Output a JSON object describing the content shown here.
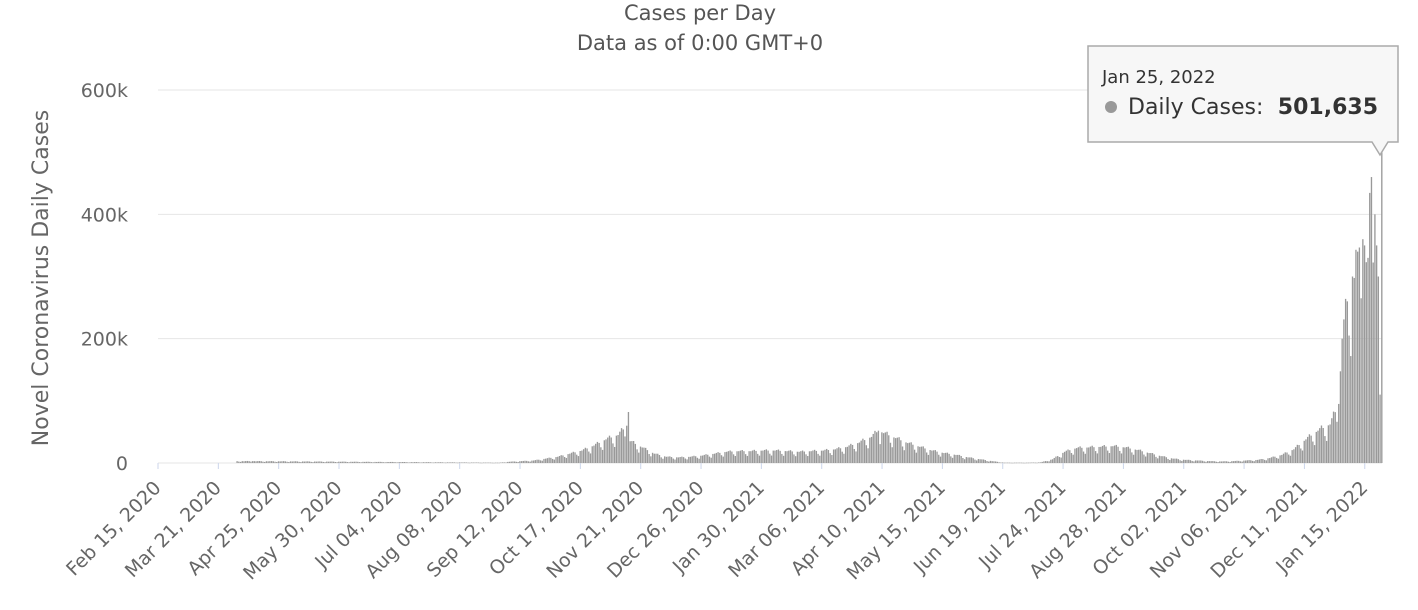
{
  "chart_data": {
    "type": "bar",
    "title": "Cases per Day",
    "subtitle": "Data as of 0:00 GMT+0",
    "ylabel": "Novel Coronavirus Daily Cases",
    "xlabel": "",
    "ylim": [
      0,
      600000
    ],
    "y_ticks": [
      {
        "value": 0,
        "label": "0"
      },
      {
        "value": 200000,
        "label": "200k"
      },
      {
        "value": 400000,
        "label": "400k"
      },
      {
        "value": 600000,
        "label": "600k"
      }
    ],
    "x_start_date": "2020-02-15",
    "x_end_date": "2022-01-25",
    "x_tick_labels": [
      "Feb 15, 2020",
      "Mar 21, 2020",
      "Apr 25, 2020",
      "May 30, 2020",
      "Jul 04, 2020",
      "Aug 08, 2020",
      "Sep 12, 2020",
      "Oct 17, 2020",
      "Nov 21, 2020",
      "Dec 26, 2020",
      "Jan 30, 2021",
      "Mar 06, 2021",
      "Apr 10, 2021",
      "May 15, 2021",
      "Jun 19, 2021",
      "Jul 24, 2021",
      "Aug 28, 2021",
      "Oct 02, 2021",
      "Nov 06, 2021",
      "Dec 11, 2021",
      "Jan 15, 2022"
    ],
    "grid": true,
    "series": [
      {
        "name": "Daily Cases",
        "color": "#999999",
        "points": [
          [
            "2020-04-01",
            3000
          ],
          [
            "2020-04-10",
            3000
          ],
          [
            "2020-08-31",
            500
          ],
          [
            "2020-09-06",
            2000
          ],
          [
            "2020-09-13",
            3000
          ],
          [
            "2020-09-20",
            4000
          ],
          [
            "2020-09-27",
            7000
          ],
          [
            "2020-10-04",
            10000
          ],
          [
            "2020-10-11",
            15000
          ],
          [
            "2020-10-18",
            20000
          ],
          [
            "2020-10-25",
            28000
          ],
          [
            "2020-11-01",
            38000
          ],
          [
            "2020-11-08",
            45000
          ],
          [
            "2020-11-13",
            60000
          ],
          [
            "2020-11-14",
            82000
          ],
          [
            "2020-11-15",
            35000
          ],
          [
            "2020-11-22",
            25000
          ],
          [
            "2020-11-29",
            15000
          ],
          [
            "2020-12-06",
            10000
          ],
          [
            "2020-12-13",
            9000
          ],
          [
            "2020-12-20",
            10000
          ],
          [
            "2020-12-27",
            12000
          ],
          [
            "2021-01-03",
            15000
          ],
          [
            "2021-01-10",
            18000
          ],
          [
            "2021-01-17",
            19000
          ],
          [
            "2021-01-24",
            19000
          ],
          [
            "2021-01-31",
            20000
          ],
          [
            "2021-02-07",
            20000
          ],
          [
            "2021-02-14",
            19000
          ],
          [
            "2021-02-21",
            18000
          ],
          [
            "2021-02-28",
            19000
          ],
          [
            "2021-03-07",
            20000
          ],
          [
            "2021-03-14",
            22000
          ],
          [
            "2021-03-21",
            26000
          ],
          [
            "2021-03-28",
            33000
          ],
          [
            "2021-04-04",
            42000
          ],
          [
            "2021-04-08",
            52000
          ],
          [
            "2021-04-11",
            48000
          ],
          [
            "2021-04-18",
            40000
          ],
          [
            "2021-04-25",
            32000
          ],
          [
            "2021-05-02",
            26000
          ],
          [
            "2021-05-09",
            20000
          ],
          [
            "2021-05-16",
            16000
          ],
          [
            "2021-05-23",
            13000
          ],
          [
            "2021-05-30",
            9000
          ],
          [
            "2021-06-06",
            6000
          ],
          [
            "2021-06-13",
            3000
          ],
          [
            "2021-06-20",
            500
          ],
          [
            "2021-06-27",
            500
          ],
          [
            "2021-07-04",
            500
          ],
          [
            "2021-07-11",
            1000
          ],
          [
            "2021-07-18",
            6000
          ],
          [
            "2021-07-25",
            18000
          ],
          [
            "2021-08-01",
            24000
          ],
          [
            "2021-08-08",
            25000
          ],
          [
            "2021-08-15",
            26000
          ],
          [
            "2021-08-22",
            27000
          ],
          [
            "2021-08-29",
            25000
          ],
          [
            "2021-09-05",
            21000
          ],
          [
            "2021-09-12",
            16000
          ],
          [
            "2021-09-19",
            11000
          ],
          [
            "2021-09-26",
            7000
          ],
          [
            "2021-10-03",
            5000
          ],
          [
            "2021-10-10",
            4000
          ],
          [
            "2021-10-17",
            3000
          ],
          [
            "2021-10-24",
            2500
          ],
          [
            "2021-10-31",
            3000
          ],
          [
            "2021-11-07",
            4000
          ],
          [
            "2021-11-14",
            5000
          ],
          [
            "2021-11-21",
            8000
          ],
          [
            "2021-11-28",
            13000
          ],
          [
            "2021-12-05",
            22000
          ],
          [
            "2021-12-12",
            38000
          ],
          [
            "2021-12-19",
            52000
          ],
          [
            "2021-12-26",
            62000
          ],
          [
            "2021-12-31",
            95000
          ],
          [
            "2022-01-02",
            200000
          ],
          [
            "2022-01-05",
            260000
          ],
          [
            "2022-01-08",
            300000
          ],
          [
            "2022-01-11",
            340000
          ],
          [
            "2022-01-14",
            360000
          ],
          [
            "2022-01-17",
            330000
          ],
          [
            "2022-01-19",
            460000
          ],
          [
            "2022-01-21",
            400000
          ],
          [
            "2022-01-23",
            300000
          ],
          [
            "2022-01-24",
            110000
          ],
          [
            "2022-01-25",
            501635
          ]
        ]
      }
    ],
    "tooltip": {
      "date": "Jan 25, 2022",
      "label": "Daily Cases:",
      "value": "501,635"
    }
  }
}
